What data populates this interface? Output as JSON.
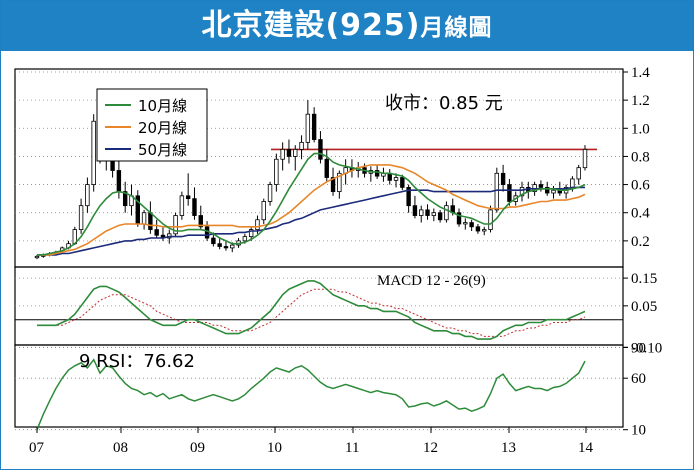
{
  "header": {
    "title_main": "北京建設(925)",
    "title_suffix": "月線圖"
  },
  "price_label": "收市：0.85 元",
  "colors": {
    "header": "#1f82c4",
    "ma10": "#2e8b3a",
    "ma20": "#e8862a",
    "ma50": "#1c2a7a",
    "resistance": "#b32020",
    "macd": "#2e8b3a",
    "signal": "#c03030",
    "rsi": "#2e8b3a"
  },
  "chart_data": [
    {
      "type": "candlestick",
      "panel": "price",
      "ylim": [
        0.0,
        1.4
      ],
      "yticks": [
        "1.4",
        "1.2",
        "1.0",
        "0.8",
        "0.6",
        "0.4",
        "0.2"
      ],
      "xticks": [
        "07",
        "08",
        "09",
        "10",
        "11",
        "12",
        "13",
        "14"
      ],
      "legend": [
        "10月線",
        "20月線",
        "50月線"
      ],
      "resistance_level": 0.85,
      "candles_ohlc": [
        [
          0.08,
          0.1,
          0.07,
          0.09
        ],
        [
          0.09,
          0.11,
          0.08,
          0.1
        ],
        [
          0.1,
          0.12,
          0.09,
          0.11
        ],
        [
          0.11,
          0.13,
          0.1,
          0.12
        ],
        [
          0.12,
          0.16,
          0.11,
          0.15
        ],
        [
          0.15,
          0.2,
          0.14,
          0.18
        ],
        [
          0.18,
          0.3,
          0.17,
          0.28
        ],
        [
          0.28,
          0.5,
          0.25,
          0.45
        ],
        [
          0.45,
          0.65,
          0.4,
          0.6
        ],
        [
          0.6,
          1.1,
          0.55,
          1.05
        ],
        [
          1.05,
          1.28,
          0.75,
          0.8
        ],
        [
          0.8,
          1.05,
          0.7,
          1.0
        ],
        [
          1.0,
          1.15,
          0.65,
          0.7
        ],
        [
          0.7,
          0.8,
          0.5,
          0.55
        ],
        [
          0.55,
          0.62,
          0.4,
          0.45
        ],
        [
          0.45,
          0.6,
          0.38,
          0.52
        ],
        [
          0.52,
          0.56,
          0.3,
          0.32
        ],
        [
          0.32,
          0.42,
          0.28,
          0.4
        ],
        [
          0.4,
          0.48,
          0.25,
          0.28
        ],
        [
          0.28,
          0.35,
          0.22,
          0.24
        ],
        [
          0.24,
          0.3,
          0.2,
          0.22
        ],
        [
          0.22,
          0.28,
          0.18,
          0.25
        ],
        [
          0.25,
          0.4,
          0.23,
          0.38
        ],
        [
          0.38,
          0.55,
          0.35,
          0.52
        ],
        [
          0.52,
          0.68,
          0.45,
          0.5
        ],
        [
          0.5,
          0.58,
          0.35,
          0.38
        ],
        [
          0.38,
          0.45,
          0.28,
          0.3
        ],
        [
          0.3,
          0.34,
          0.2,
          0.22
        ],
        [
          0.22,
          0.26,
          0.16,
          0.18
        ],
        [
          0.18,
          0.22,
          0.14,
          0.16
        ],
        [
          0.16,
          0.2,
          0.13,
          0.15
        ],
        [
          0.15,
          0.19,
          0.12,
          0.17
        ],
        [
          0.17,
          0.22,
          0.15,
          0.2
        ],
        [
          0.2,
          0.25,
          0.18,
          0.23
        ],
        [
          0.23,
          0.3,
          0.2,
          0.28
        ],
        [
          0.28,
          0.38,
          0.25,
          0.35
        ],
        [
          0.35,
          0.5,
          0.32,
          0.48
        ],
        [
          0.48,
          0.62,
          0.45,
          0.6
        ],
        [
          0.6,
          0.82,
          0.55,
          0.78
        ],
        [
          0.78,
          0.9,
          0.7,
          0.85
        ],
        [
          0.85,
          0.92,
          0.75,
          0.8
        ],
        [
          0.8,
          0.88,
          0.7,
          0.85
        ],
        [
          0.85,
          0.95,
          0.78,
          0.9
        ],
        [
          0.9,
          1.2,
          0.85,
          1.1
        ],
        [
          1.1,
          1.15,
          0.9,
          0.92
        ],
        [
          0.92,
          0.98,
          0.75,
          0.78
        ],
        [
          0.78,
          0.85,
          0.62,
          0.65
        ],
        [
          0.65,
          0.72,
          0.52,
          0.55
        ],
        [
          0.55,
          0.7,
          0.5,
          0.68
        ],
        [
          0.68,
          0.78,
          0.6,
          0.72
        ],
        [
          0.72,
          0.78,
          0.65,
          0.7
        ],
        [
          0.7,
          0.76,
          0.65,
          0.72
        ],
        [
          0.72,
          0.75,
          0.65,
          0.68
        ],
        [
          0.68,
          0.73,
          0.62,
          0.7
        ],
        [
          0.7,
          0.74,
          0.64,
          0.66
        ],
        [
          0.66,
          0.72,
          0.62,
          0.68
        ],
        [
          0.68,
          0.71,
          0.6,
          0.63
        ],
        [
          0.63,
          0.68,
          0.58,
          0.65
        ],
        [
          0.65,
          0.67,
          0.56,
          0.58
        ],
        [
          0.58,
          0.6,
          0.4,
          0.45
        ],
        [
          0.45,
          0.52,
          0.36,
          0.38
        ],
        [
          0.38,
          0.45,
          0.33,
          0.42
        ],
        [
          0.42,
          0.46,
          0.35,
          0.38
        ],
        [
          0.38,
          0.43,
          0.34,
          0.4
        ],
        [
          0.4,
          0.42,
          0.33,
          0.35
        ],
        [
          0.35,
          0.48,
          0.33,
          0.45
        ],
        [
          0.45,
          0.5,
          0.38,
          0.4
        ],
        [
          0.4,
          0.43,
          0.3,
          0.32
        ],
        [
          0.32,
          0.36,
          0.28,
          0.33
        ],
        [
          0.33,
          0.35,
          0.27,
          0.3
        ],
        [
          0.3,
          0.32,
          0.25,
          0.27
        ],
        [
          0.27,
          0.3,
          0.24,
          0.28
        ],
        [
          0.28,
          0.45,
          0.26,
          0.42
        ],
        [
          0.42,
          0.72,
          0.4,
          0.68
        ],
        [
          0.68,
          0.74,
          0.55,
          0.6
        ],
        [
          0.6,
          0.64,
          0.45,
          0.48
        ],
        [
          0.48,
          0.55,
          0.45,
          0.52
        ],
        [
          0.52,
          0.62,
          0.48,
          0.58
        ],
        [
          0.58,
          0.62,
          0.5,
          0.55
        ],
        [
          0.55,
          0.62,
          0.52,
          0.6
        ],
        [
          0.6,
          0.63,
          0.55,
          0.58
        ],
        [
          0.58,
          0.62,
          0.52,
          0.54
        ],
        [
          0.54,
          0.59,
          0.5,
          0.56
        ],
        [
          0.56,
          0.62,
          0.52,
          0.54
        ],
        [
          0.54,
          0.6,
          0.5,
          0.58
        ],
        [
          0.58,
          0.66,
          0.55,
          0.64
        ],
        [
          0.64,
          0.74,
          0.6,
          0.72
        ],
        [
          0.72,
          0.88,
          0.7,
          0.85
        ]
      ],
      "ma10": [
        0.1,
        0.1,
        0.11,
        0.12,
        0.13,
        0.15,
        0.18,
        0.23,
        0.3,
        0.38,
        0.45,
        0.5,
        0.54,
        0.55,
        0.54,
        0.52,
        0.48,
        0.44,
        0.4,
        0.36,
        0.32,
        0.29,
        0.27,
        0.27,
        0.28,
        0.28,
        0.28,
        0.27,
        0.25,
        0.22,
        0.2,
        0.18,
        0.18,
        0.19,
        0.21,
        0.24,
        0.28,
        0.34,
        0.41,
        0.49,
        0.57,
        0.64,
        0.71,
        0.78,
        0.82,
        0.82,
        0.8,
        0.76,
        0.74,
        0.73,
        0.72,
        0.71,
        0.7,
        0.69,
        0.69,
        0.68,
        0.68,
        0.67,
        0.66,
        0.63,
        0.58,
        0.54,
        0.5,
        0.47,
        0.44,
        0.42,
        0.4,
        0.38,
        0.37,
        0.36,
        0.34,
        0.32,
        0.32,
        0.36,
        0.42,
        0.47,
        0.5,
        0.53,
        0.55,
        0.56,
        0.57,
        0.57,
        0.57,
        0.56,
        0.56,
        0.57,
        0.58,
        0.6
      ],
      "ma20": [
        0.1,
        0.1,
        0.1,
        0.11,
        0.12,
        0.13,
        0.14,
        0.16,
        0.18,
        0.21,
        0.24,
        0.27,
        0.29,
        0.31,
        0.32,
        0.32,
        0.32,
        0.32,
        0.31,
        0.31,
        0.3,
        0.3,
        0.3,
        0.3,
        0.31,
        0.31,
        0.31,
        0.31,
        0.31,
        0.31,
        0.31,
        0.31,
        0.3,
        0.3,
        0.3,
        0.3,
        0.31,
        0.32,
        0.34,
        0.37,
        0.4,
        0.44,
        0.48,
        0.52,
        0.56,
        0.59,
        0.62,
        0.64,
        0.66,
        0.68,
        0.7,
        0.72,
        0.73,
        0.74,
        0.74,
        0.74,
        0.74,
        0.73,
        0.72,
        0.7,
        0.68,
        0.65,
        0.62,
        0.6,
        0.58,
        0.56,
        0.53,
        0.51,
        0.49,
        0.47,
        0.45,
        0.44,
        0.43,
        0.43,
        0.43,
        0.44,
        0.44,
        0.45,
        0.46,
        0.47,
        0.48,
        0.48,
        0.49,
        0.49,
        0.49,
        0.5,
        0.51,
        0.53
      ],
      "ma50": [
        0.1,
        0.1,
        0.1,
        0.1,
        0.11,
        0.11,
        0.12,
        0.13,
        0.14,
        0.15,
        0.16,
        0.17,
        0.18,
        0.19,
        0.2,
        0.2,
        0.21,
        0.21,
        0.22,
        0.22,
        0.22,
        0.23,
        0.23,
        0.23,
        0.24,
        0.24,
        0.24,
        0.24,
        0.25,
        0.25,
        0.25,
        0.25,
        0.26,
        0.26,
        0.27,
        0.27,
        0.28,
        0.29,
        0.3,
        0.32,
        0.33,
        0.35,
        0.36,
        0.38,
        0.4,
        0.42,
        0.43,
        0.44,
        0.45,
        0.46,
        0.47,
        0.48,
        0.49,
        0.5,
        0.51,
        0.52,
        0.53,
        0.54,
        0.55,
        0.56,
        0.56,
        0.56,
        0.56,
        0.55,
        0.55,
        0.55,
        0.55,
        0.55,
        0.55,
        0.55,
        0.55,
        0.55,
        0.55,
        0.56,
        0.56,
        0.56,
        0.56,
        0.56,
        0.57,
        0.57,
        0.57,
        0.57,
        0.57,
        0.57,
        0.57,
        0.58,
        0.58,
        0.58
      ]
    },
    {
      "type": "line",
      "panel": "macd",
      "label": "MACD 12 - 26(9)",
      "ylim": [
        -0.12,
        0.19
      ],
      "yticks": [
        "0.15",
        "0.05",
        "-0.10"
      ],
      "macd": [
        -0.02,
        -0.02,
        -0.02,
        -0.02,
        -0.01,
        0.0,
        0.02,
        0.05,
        0.08,
        0.11,
        0.12,
        0.12,
        0.11,
        0.1,
        0.08,
        0.06,
        0.04,
        0.02,
        0.0,
        -0.01,
        -0.02,
        -0.02,
        -0.02,
        -0.01,
        0.0,
        0.0,
        -0.01,
        -0.02,
        -0.03,
        -0.04,
        -0.05,
        -0.05,
        -0.05,
        -0.04,
        -0.03,
        -0.01,
        0.01,
        0.03,
        0.06,
        0.09,
        0.11,
        0.12,
        0.13,
        0.14,
        0.14,
        0.13,
        0.11,
        0.09,
        0.08,
        0.07,
        0.06,
        0.05,
        0.05,
        0.04,
        0.04,
        0.03,
        0.03,
        0.03,
        0.02,
        0.01,
        -0.01,
        -0.02,
        -0.03,
        -0.04,
        -0.04,
        -0.04,
        -0.05,
        -0.05,
        -0.06,
        -0.06,
        -0.07,
        -0.07,
        -0.07,
        -0.06,
        -0.04,
        -0.03,
        -0.02,
        -0.02,
        -0.01,
        -0.01,
        -0.01,
        0.0,
        0.0,
        0.0,
        0.0,
        0.01,
        0.02,
        0.03
      ],
      "signal": [
        -0.02,
        -0.02,
        -0.02,
        -0.02,
        -0.02,
        -0.01,
        0.0,
        0.01,
        0.03,
        0.05,
        0.07,
        0.08,
        0.09,
        0.09,
        0.09,
        0.08,
        0.07,
        0.06,
        0.05,
        0.03,
        0.02,
        0.01,
        0.0,
        -0.01,
        -0.01,
        -0.01,
        -0.01,
        -0.01,
        -0.02,
        -0.02,
        -0.03,
        -0.04,
        -0.04,
        -0.04,
        -0.04,
        -0.03,
        -0.02,
        -0.01,
        0.01,
        0.03,
        0.05,
        0.07,
        0.09,
        0.1,
        0.11,
        0.11,
        0.11,
        0.11,
        0.1,
        0.1,
        0.09,
        0.08,
        0.07,
        0.06,
        0.06,
        0.05,
        0.05,
        0.04,
        0.04,
        0.03,
        0.02,
        0.01,
        0.0,
        -0.01,
        -0.02,
        -0.03,
        -0.03,
        -0.04,
        -0.04,
        -0.05,
        -0.05,
        -0.06,
        -0.06,
        -0.06,
        -0.06,
        -0.05,
        -0.04,
        -0.04,
        -0.03,
        -0.03,
        -0.02,
        -0.02,
        -0.01,
        -0.01,
        -0.01,
        0.0,
        0.0,
        0.01
      ]
    },
    {
      "type": "line",
      "panel": "rsi",
      "label": "9 RSI：76.62",
      "ylim": [
        0,
        100
      ],
      "yticks": [
        "90",
        "60",
        "10"
      ],
      "rsi": [
        10,
        25,
        38,
        50,
        60,
        68,
        72,
        75,
        70,
        78,
        65,
        72,
        70,
        62,
        55,
        50,
        48,
        44,
        46,
        42,
        45,
        40,
        42,
        44,
        40,
        38,
        40,
        42,
        44,
        42,
        40,
        38,
        40,
        44,
        50,
        55,
        60,
        66,
        70,
        68,
        66,
        70,
        72,
        68,
        62,
        56,
        52,
        50,
        52,
        54,
        52,
        50,
        48,
        46,
        48,
        46,
        45,
        44,
        40,
        32,
        33,
        35,
        36,
        33,
        35,
        38,
        34,
        30,
        31,
        28,
        30,
        33,
        45,
        60,
        64,
        55,
        48,
        50,
        52,
        50,
        50,
        48,
        51,
        52,
        55,
        60,
        65,
        76.62
      ]
    }
  ]
}
